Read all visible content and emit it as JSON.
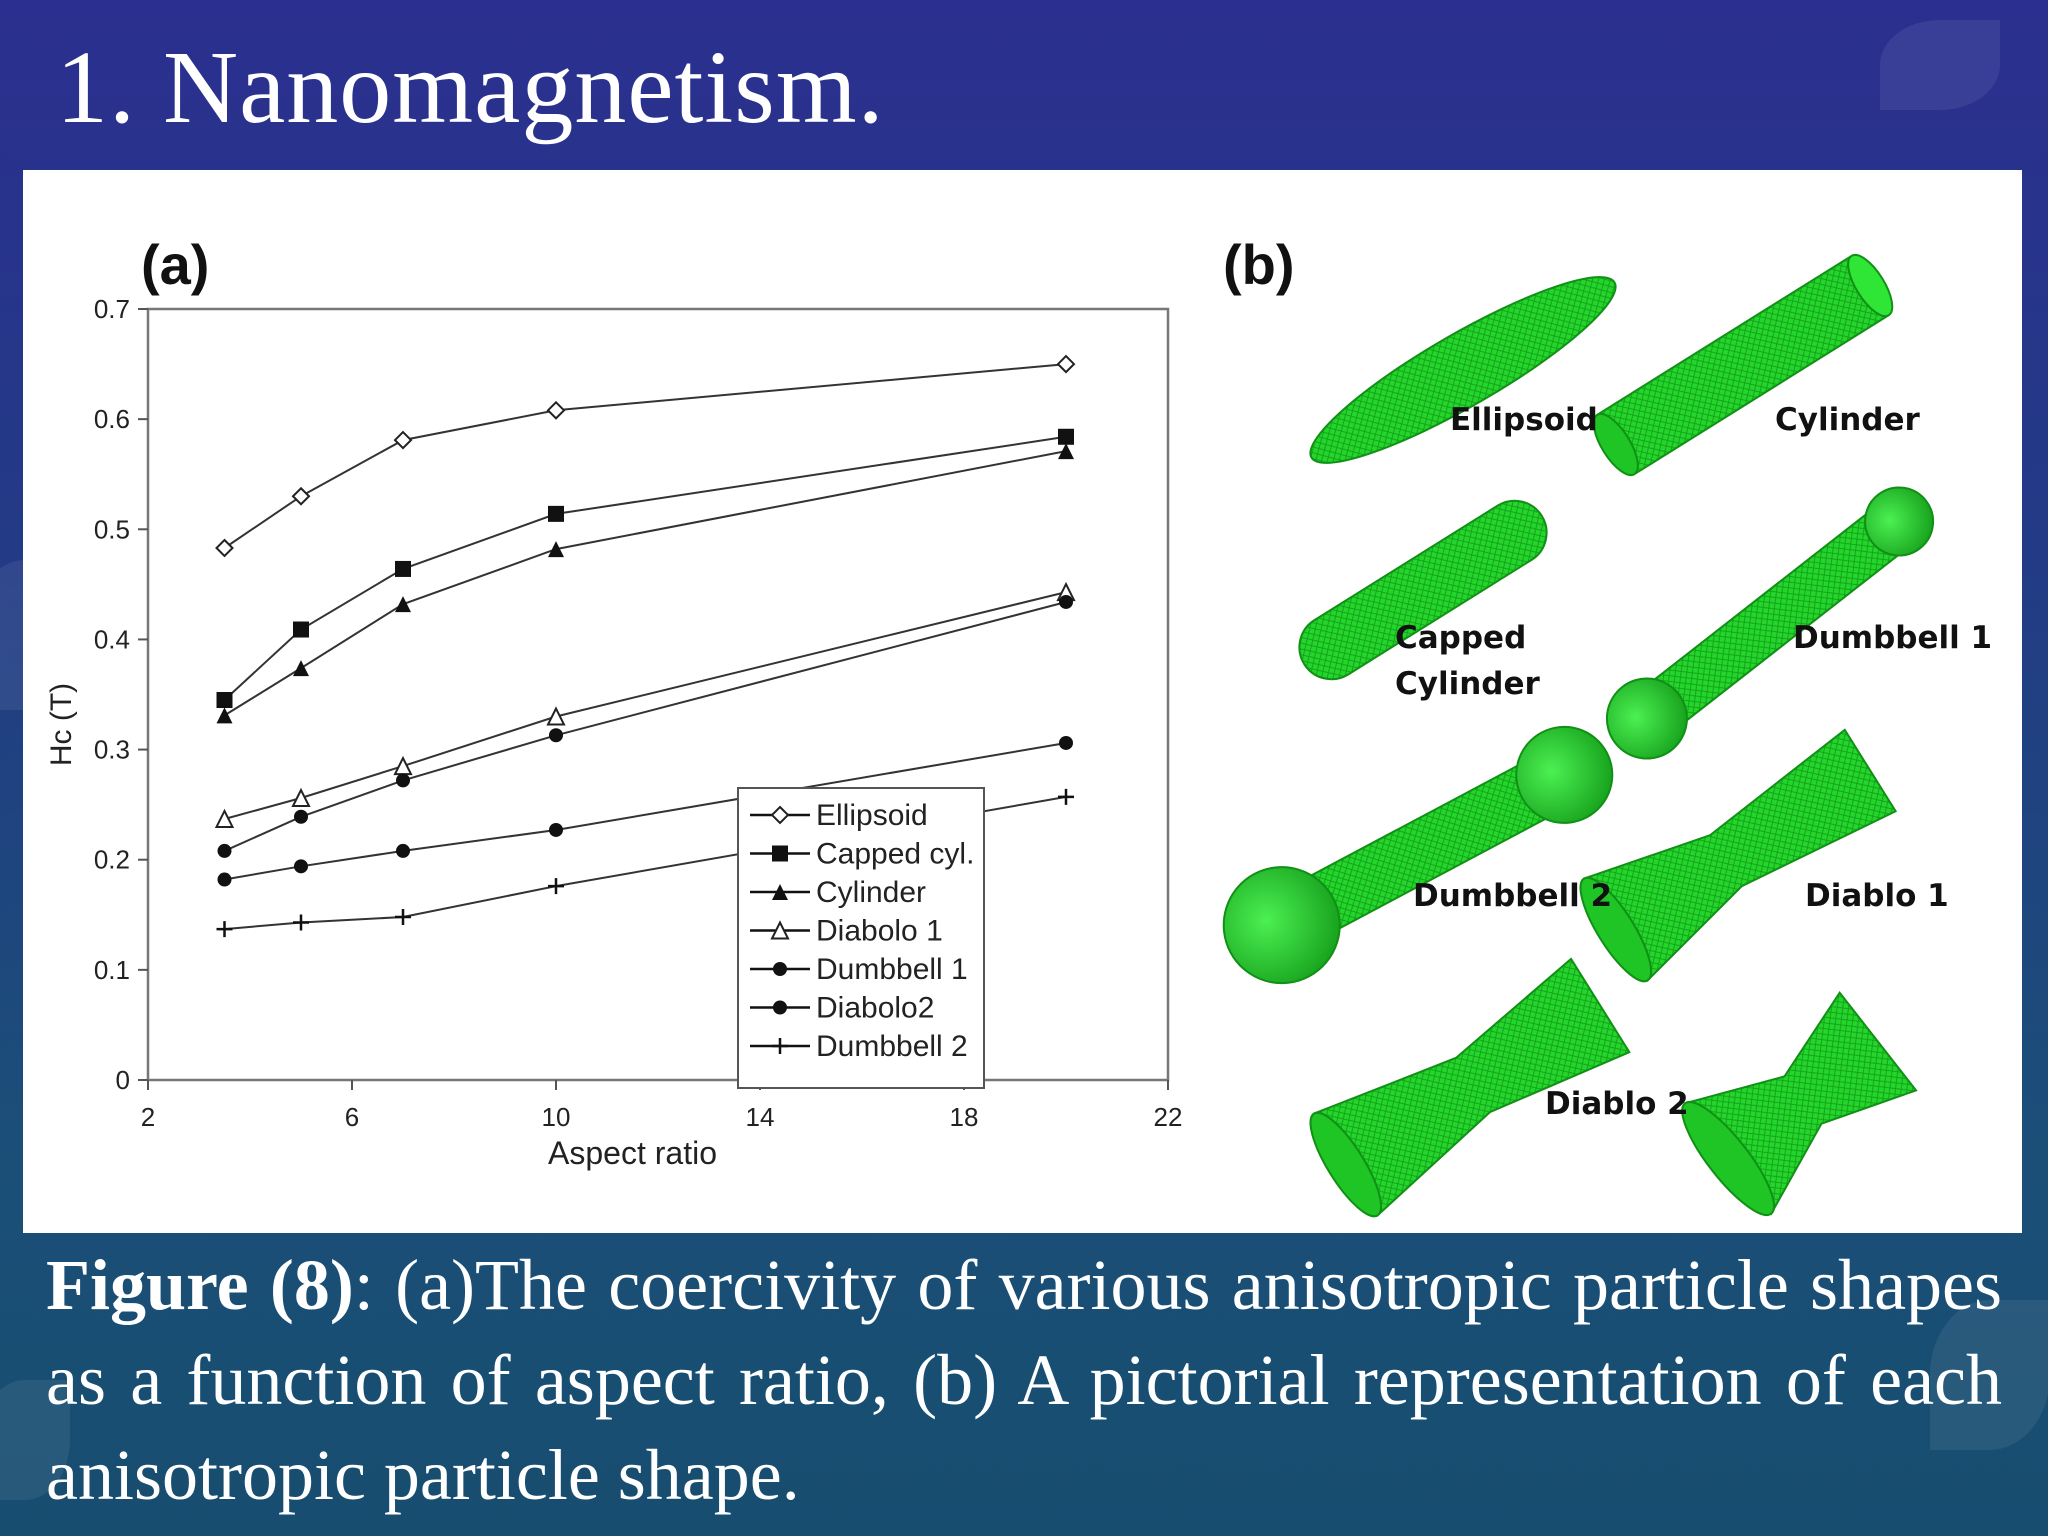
{
  "slide": {
    "title": "1. Nanomagnetism."
  },
  "panel_a_label": "(a)",
  "panel_b_label": "(b)",
  "chart_data": {
    "type": "line",
    "xlabel": "Aspect ratio",
    "ylabel": "Hc (T)",
    "xlim": [
      2,
      22
    ],
    "ylim": [
      0,
      0.7
    ],
    "x_ticks": [
      2,
      6,
      10,
      14,
      18,
      22
    ],
    "y_ticks": [
      0,
      0.1,
      0.2,
      0.3,
      0.4,
      0.5,
      0.6,
      0.7
    ],
    "y_tick_labels": [
      "0",
      "0.1",
      "0.2",
      "0.3",
      "0.4",
      "0.5",
      "0.6",
      "0.7"
    ],
    "x": [
      3.5,
      5,
      7,
      10,
      20
    ],
    "legend_position": "lower-right",
    "grid": false,
    "series": [
      {
        "name": "Ellipsoid",
        "marker": "diamond-open",
        "values": [
          0.483,
          0.53,
          0.581,
          0.608,
          0.65
        ]
      },
      {
        "name": "Capped cyl.",
        "marker": "square-filled",
        "values": [
          0.345,
          0.409,
          0.464,
          0.514,
          0.584
        ]
      },
      {
        "name": "Cylinder",
        "marker": "triangle-filled",
        "values": [
          0.331,
          0.374,
          0.432,
          0.482,
          0.571
        ]
      },
      {
        "name": "Diabolo 1",
        "marker": "triangle-open",
        "values": [
          0.237,
          0.256,
          0.285,
          0.33,
          0.443
        ]
      },
      {
        "name": "Dumbbell 1",
        "marker": "circle-filled",
        "values": [
          0.208,
          0.239,
          0.272,
          0.313,
          0.434
        ]
      },
      {
        "name": "Diabolo2",
        "marker": "circle-filled",
        "values": [
          0.182,
          0.194,
          0.208,
          0.227,
          0.306
        ]
      },
      {
        "name": "Dumbbell 2",
        "marker": "plus",
        "values": [
          0.137,
          0.143,
          0.148,
          0.176,
          0.257
        ]
      }
    ]
  },
  "shapes": {
    "ellipsoid": "Ellipsoid",
    "cylinder": "Cylinder",
    "capped_cylinder_line1": "Capped",
    "capped_cylinder_line2": "Cylinder",
    "dumbbell_1": "Dumbbell 1",
    "dumbbell_2": "Dumbbell 2",
    "diablo_1": "Diablo 1",
    "diablo_2": "Diablo 2",
    "color": "#22d62a"
  },
  "caption": {
    "lead": "Figure (8)",
    "separator": ":",
    "text": " (a)The coercivity of various anisotropic particle shapes as a function of aspect ratio, (b) A pictorial representation of each anisotropic particle shape."
  }
}
